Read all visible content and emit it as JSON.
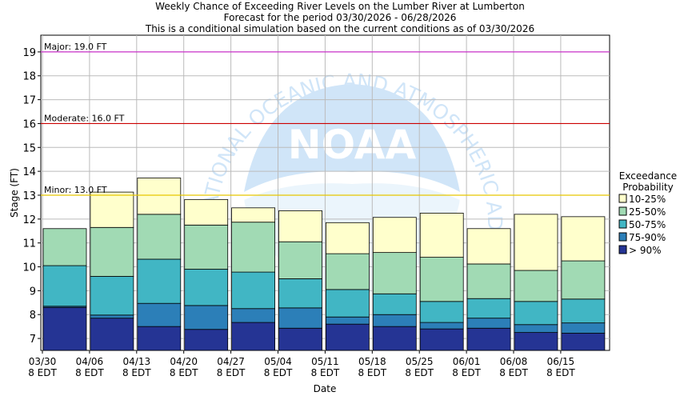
{
  "chart_data": {
    "type": "bar",
    "title_lines": [
      "Weekly Chance of Exceeding River Levels on the Lumber River at Lumberton",
      "Forecast for the period 03/30/2026 - 06/28/2026",
      "This is a conditional simulation based on the current conditions as of 03/30/2026"
    ],
    "xlabel": "Date",
    "ylabel": "Stage (FT)",
    "ylim": [
      6.5,
      19.7
    ],
    "y_ticks": [
      7,
      8,
      9,
      10,
      11,
      12,
      13,
      14,
      15,
      16,
      17,
      18,
      19
    ],
    "x_tick_labels": [
      [
        "03/30",
        "8 EDT"
      ],
      [
        "04/06",
        "8 EDT"
      ],
      [
        "04/13",
        "8 EDT"
      ],
      [
        "04/20",
        "8 EDT"
      ],
      [
        "04/27",
        "8 EDT"
      ],
      [
        "05/04",
        "8 EDT"
      ],
      [
        "05/11",
        "8 EDT"
      ],
      [
        "05/18",
        "8 EDT"
      ],
      [
        "05/25",
        "8 EDT"
      ],
      [
        "06/01",
        "8 EDT"
      ],
      [
        "06/08",
        "8 EDT"
      ],
      [
        "06/15",
        "8 EDT"
      ]
    ],
    "grid": true,
    "legend": {
      "title_lines": [
        "Exceedance",
        "Probability"
      ],
      "placement": "right",
      "items": [
        {
          "label": "10-25%",
          "color": "#ffffcc"
        },
        {
          "label": "25-50%",
          "color": "#a1dab4"
        },
        {
          "label": "50-75%",
          "color": "#41b6c4"
        },
        {
          "label": "75-90%",
          "color": "#2c7fb8"
        },
        {
          "label": "> 90%",
          "color": "#253494"
        }
      ]
    },
    "thresholds": [
      {
        "label": "Major: 19.0 FT",
        "value": 19.0,
        "color": "#cc33cc"
      },
      {
        "label": "Moderate: 16.0 FT",
        "value": 16.0,
        "color": "#cc0000"
      },
      {
        "label": "Minor: 13.0 FT",
        "value": 13.0,
        "color": "#e6c800"
      }
    ],
    "weeks": [
      "03/30",
      "04/06",
      "04/13",
      "04/20",
      "04/27",
      "05/04",
      "05/11",
      "05/18",
      "05/25",
      "06/01",
      "06/08",
      "06/15"
    ],
    "bars": [
      [
        8.3,
        8.35,
        10.05,
        11.6
      ],
      [
        7.85,
        7.98,
        9.6,
        11.65
      ],
      [
        7.5,
        8.47,
        10.32,
        12.2
      ],
      [
        7.38,
        8.38,
        9.9,
        11.75
      ],
      [
        7.67,
        8.25,
        9.78,
        11.87
      ],
      [
        7.43,
        8.28,
        9.5,
        11.05
      ],
      [
        7.6,
        7.9,
        9.05,
        10.55
      ],
      [
        7.5,
        8.0,
        8.87,
        10.6
      ],
      [
        7.4,
        7.67,
        8.55,
        10.4
      ],
      [
        7.43,
        7.85,
        8.67,
        10.12
      ],
      [
        7.25,
        7.58,
        8.55,
        9.85
      ],
      [
        7.22,
        7.65,
        8.65,
        10.25
      ]
    ],
    "tops": [
      11.6,
      13.13,
      13.72,
      12.82,
      12.47,
      12.35,
      11.85,
      12.07,
      12.25,
      11.6,
      12.2,
      12.1
    ]
  },
  "logo": {
    "text": "NOAA",
    "ring_text": "NATIONAL OCEANIC AND ATMOSPHERIC ADMINISTRATION"
  }
}
